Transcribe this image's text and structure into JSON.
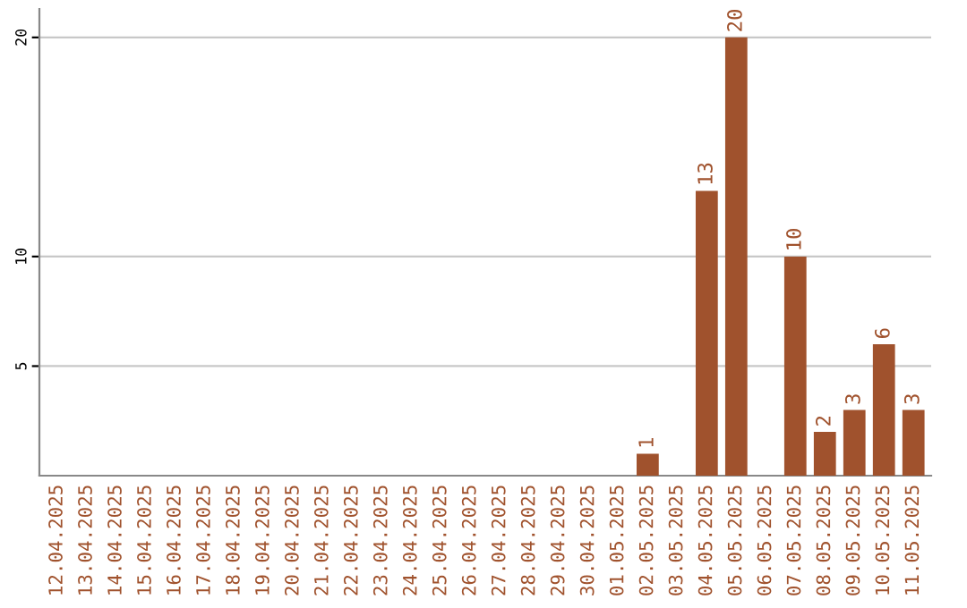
{
  "chart_data": {
    "type": "bar",
    "categories": [
      "12.04.2025",
      "13.04.2025",
      "14.04.2025",
      "15.04.2025",
      "16.04.2025",
      "17.04.2025",
      "18.04.2025",
      "19.04.2025",
      "20.04.2025",
      "21.04.2025",
      "22.04.2025",
      "23.04.2025",
      "24.04.2025",
      "25.04.2025",
      "26.04.2025",
      "27.04.2025",
      "28.04.2025",
      "29.04.2025",
      "30.04.2025",
      "01.05.2025",
      "02.05.2025",
      "03.05.2025",
      "04.05.2025",
      "05.05.2025",
      "06.05.2025",
      "07.05.2025",
      "08.05.2025",
      "09.05.2025",
      "10.05.2025",
      "11.05.2025"
    ],
    "values": [
      0,
      0,
      0,
      0,
      0,
      0,
      0,
      0,
      0,
      0,
      0,
      0,
      0,
      0,
      0,
      0,
      0,
      0,
      0,
      0,
      1,
      0,
      13,
      20,
      0,
      10,
      2,
      3,
      6,
      3
    ],
    "value_labels": [
      null,
      null,
      null,
      null,
      null,
      null,
      null,
      null,
      null,
      null,
      null,
      null,
      null,
      null,
      null,
      null,
      null,
      null,
      null,
      null,
      "1",
      null,
      "13",
      "20",
      null,
      "10",
      "2",
      "3",
      "6",
      "3"
    ],
    "color": "#a0522d",
    "ylim": [
      0,
      20
    ],
    "yticks": [
      5,
      10,
      20
    ],
    "grid": "y",
    "legend": false
  }
}
